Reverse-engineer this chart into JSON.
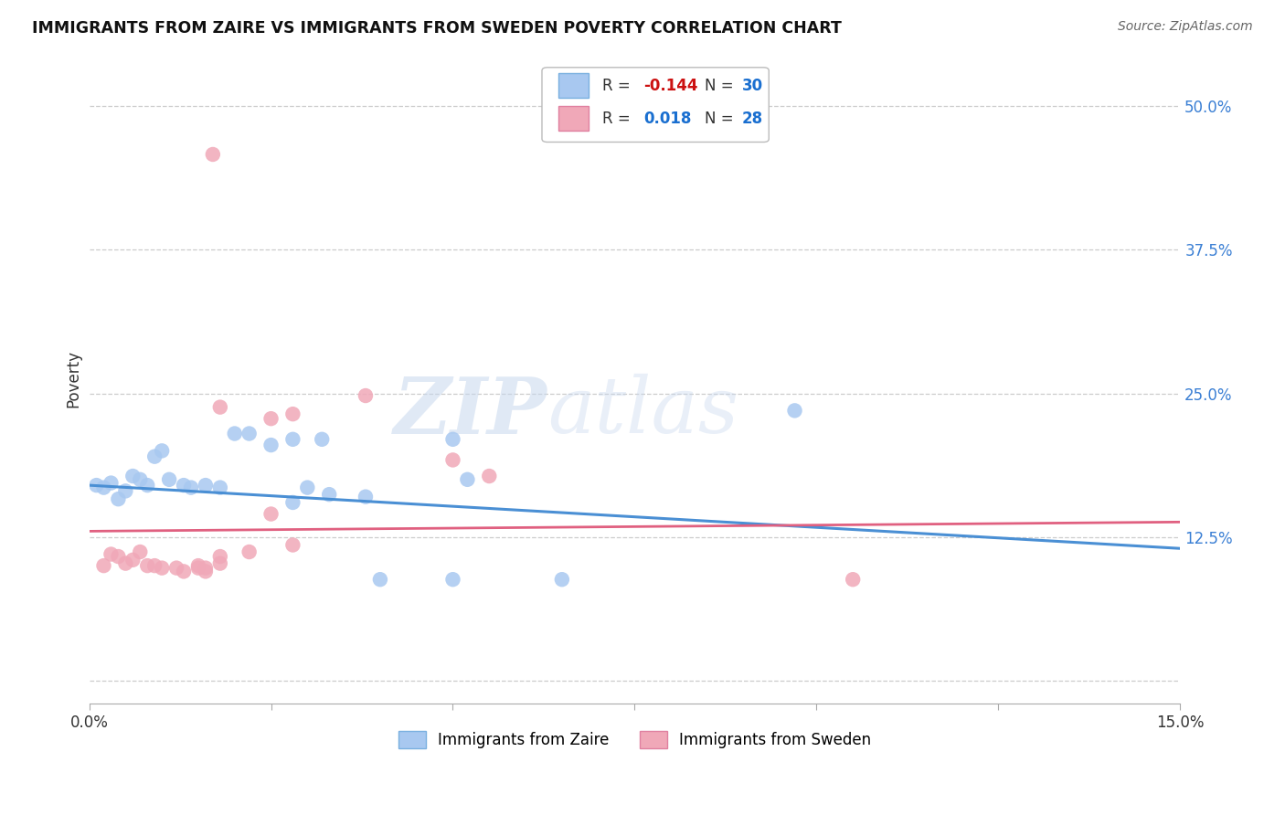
{
  "title": "IMMIGRANTS FROM ZAIRE VS IMMIGRANTS FROM SWEDEN POVERTY CORRELATION CHART",
  "source": "Source: ZipAtlas.com",
  "ylabel": "Poverty",
  "xlim": [
    0.0,
    0.15
  ],
  "ylim": [
    -0.02,
    0.545
  ],
  "background_color": "#ffffff",
  "zaire_color": "#a8c8f0",
  "sweden_color": "#f0a8b8",
  "zaire_line_color": "#4a8fd4",
  "sweden_line_color": "#e06080",
  "legend_zaire_R": "-0.144",
  "legend_zaire_N": "30",
  "legend_sweden_R": "0.018",
  "legend_sweden_N": "28",
  "zaire_x": [
    0.001,
    0.002,
    0.003,
    0.004,
    0.005,
    0.006,
    0.007,
    0.008,
    0.009,
    0.01,
    0.011,
    0.013,
    0.014,
    0.016,
    0.018,
    0.02,
    0.022,
    0.025,
    0.028,
    0.03,
    0.033,
    0.038,
    0.028,
    0.032,
    0.05,
    0.052,
    0.05,
    0.097,
    0.065,
    0.04
  ],
  "zaire_y": [
    0.17,
    0.168,
    0.172,
    0.158,
    0.165,
    0.178,
    0.175,
    0.17,
    0.195,
    0.2,
    0.175,
    0.17,
    0.168,
    0.17,
    0.168,
    0.215,
    0.215,
    0.205,
    0.21,
    0.168,
    0.162,
    0.16,
    0.155,
    0.21,
    0.21,
    0.175,
    0.088,
    0.235,
    0.088,
    0.088
  ],
  "sweden_x": [
    0.002,
    0.003,
    0.004,
    0.005,
    0.006,
    0.007,
    0.008,
    0.009,
    0.01,
    0.012,
    0.013,
    0.015,
    0.016,
    0.018,
    0.022,
    0.025,
    0.028,
    0.015,
    0.016,
    0.018,
    0.038,
    0.05,
    0.055,
    0.025,
    0.028,
    0.018,
    0.017,
    0.105
  ],
  "sweden_y": [
    0.1,
    0.11,
    0.108,
    0.102,
    0.105,
    0.112,
    0.1,
    0.1,
    0.098,
    0.098,
    0.095,
    0.1,
    0.095,
    0.102,
    0.112,
    0.145,
    0.118,
    0.098,
    0.098,
    0.108,
    0.248,
    0.192,
    0.178,
    0.228,
    0.232,
    0.238,
    0.458,
    0.088
  ],
  "ytick_vals": [
    0.0,
    0.125,
    0.25,
    0.375,
    0.5
  ],
  "ytick_labels_right": [
    "",
    "12.5%",
    "25.0%",
    "37.5%",
    "50.0%"
  ]
}
